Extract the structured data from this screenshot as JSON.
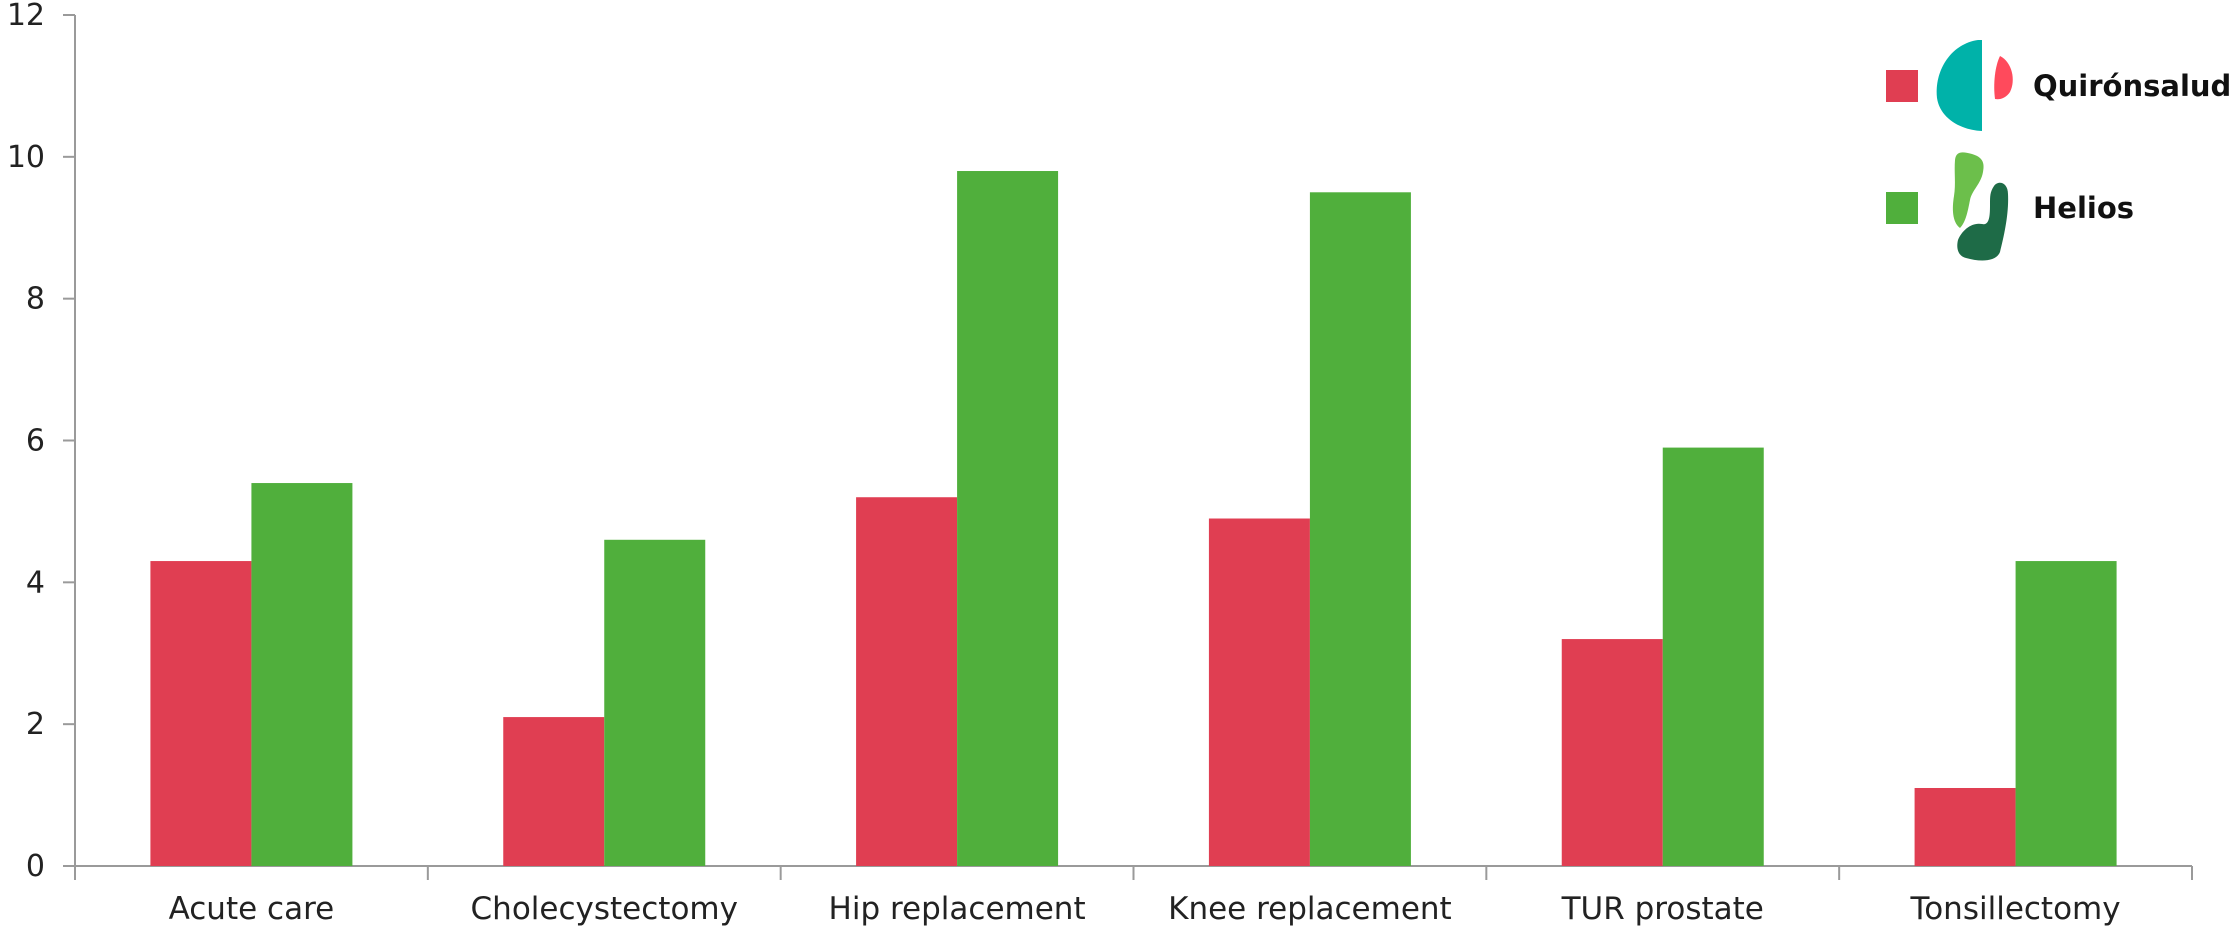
{
  "chart_data": {
    "type": "bar",
    "categories": [
      "Acute care",
      "Cholecystectomy",
      "Hip replacement",
      "Knee replacement",
      "TUR prostate",
      "Tonsillectomy"
    ],
    "series": [
      {
        "name": "Quirónsalud",
        "color": "#E03E52",
        "values": [
          4.3,
          2.1,
          5.2,
          4.9,
          3.2,
          1.1
        ]
      },
      {
        "name": "Helios",
        "color": "#50AF3C",
        "values": [
          5.4,
          4.6,
          9.8,
          9.5,
          5.9,
          4.3
        ]
      }
    ],
    "ylim": [
      0,
      12
    ],
    "yticks": [
      0,
      2,
      4,
      6,
      8,
      10,
      12
    ],
    "grid": false,
    "legend_position": "top-right",
    "legend_logos": [
      {
        "series": "Quirónsalud",
        "icon": "quironsalud-logo-icon",
        "colors": [
          "#00B2A9",
          "#FF4A5C"
        ]
      },
      {
        "series": "Helios",
        "icon": "helios-logo-icon",
        "colors": [
          "#6CBF4B",
          "#1E6B47"
        ]
      }
    ],
    "axis_color": "#9A9A9A"
  }
}
